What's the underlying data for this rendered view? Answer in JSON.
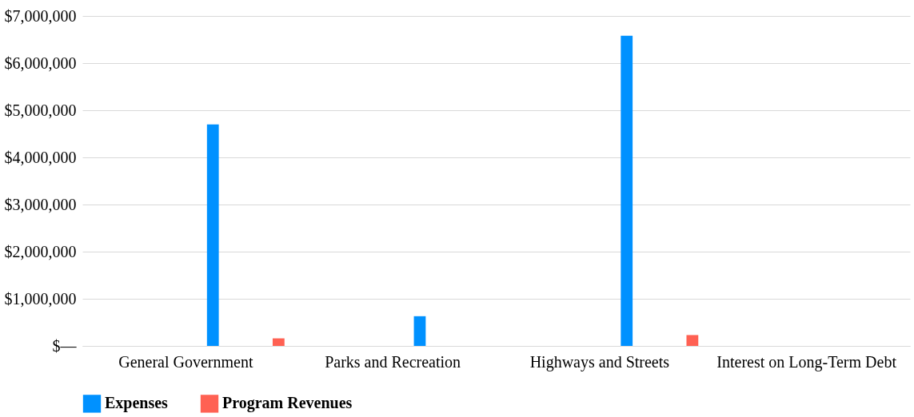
{
  "chart_data": {
    "type": "bar",
    "categories": [
      "General Government",
      "Parks and Recreation",
      "Highways and Streets",
      "Interest on Long-Term Debt"
    ],
    "series": [
      {
        "name": "Expenses",
        "color": "#0091ff",
        "values": [
          4700000,
          630000,
          6580000,
          0
        ]
      },
      {
        "name": "Program Revenues",
        "color": "#ff6153",
        "values": [
          160000,
          0,
          230000,
          0
        ]
      }
    ],
    "ylim": [
      0,
      7000000
    ],
    "yticks": [
      {
        "value": 0,
        "label": "$—"
      },
      {
        "value": 1000000,
        "label": "$1,000,000"
      },
      {
        "value": 2000000,
        "label": "$2,000,000"
      },
      {
        "value": 3000000,
        "label": "$3,000,000"
      },
      {
        "value": 4000000,
        "label": "$4,000,000"
      },
      {
        "value": 5000000,
        "label": "$5,000,000"
      },
      {
        "value": 6000000,
        "label": "$6,000,000"
      },
      {
        "value": 7000000,
        "label": "$7,000,000"
      }
    ],
    "grid": "y",
    "legend": "bottom"
  }
}
